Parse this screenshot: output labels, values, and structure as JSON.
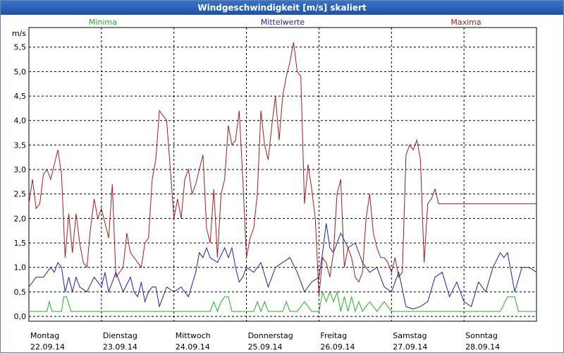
{
  "window": {
    "title": "Windgeschwindigkeit [m/s] skaliert"
  },
  "colors": {
    "min": "#22b222",
    "mean": "#1f1fb0",
    "max": "#a31d1d",
    "grid": "#000000",
    "title_bar": "#2a62b8"
  },
  "chart_data": {
    "type": "line",
    "title": "Windgeschwindigkeit [m/s] skaliert",
    "ylabel": "m/s",
    "ylim": [
      -0.1,
      5.9
    ],
    "yticks": [
      "0,0",
      "0,5",
      "1,0",
      "1,5",
      "2,0",
      "2,5",
      "3,0",
      "3,5",
      "4,0",
      "4,5",
      "5,0",
      "5,5"
    ],
    "yticks_values": [
      0,
      0.5,
      1.0,
      1.5,
      2.0,
      2.5,
      3.0,
      3.5,
      4.0,
      4.5,
      5.0,
      5.5
    ],
    "xlim": [
      0,
      7
    ],
    "days": [
      {
        "name": "Montag",
        "date": "22.09.14"
      },
      {
        "name": "Dienstag",
        "date": "23.09.14"
      },
      {
        "name": "Mittwoch",
        "date": "24.09.14"
      },
      {
        "name": "Donnerstag",
        "date": "25.09.14"
      },
      {
        "name": "Freitag",
        "date": "26.09.14"
      },
      {
        "name": "Samstag",
        "date": "27.09.14"
      },
      {
        "name": "Sonntag",
        "date": "28.09.14"
      }
    ],
    "legend": [
      "Minima",
      "Mittelwerte",
      "Maxima"
    ],
    "grid": true,
    "series": [
      {
        "name": "Minima",
        "x": [
          0,
          0.25,
          0.28,
          0.32,
          0.45,
          0.48,
          0.52,
          0.58,
          0.62,
          1.0,
          1.5,
          1.7,
          1.75,
          2.0,
          2.5,
          2.55,
          2.6,
          2.65,
          2.7,
          2.75,
          2.8,
          2.9,
          3.0,
          3.1,
          3.15,
          3.2,
          3.25,
          3.3,
          3.35,
          3.5,
          3.55,
          3.6,
          3.7,
          3.8,
          3.9,
          3.95,
          4.0,
          4.05,
          4.1,
          4.15,
          4.2,
          4.25,
          4.3,
          4.35,
          4.4,
          4.45,
          4.5,
          4.55,
          4.6,
          4.7,
          4.8,
          4.9,
          5.0,
          5.5,
          6.0,
          6.5,
          6.6,
          6.7,
          6.75,
          6.8,
          6.85,
          6.9,
          7.0
        ],
        "values": [
          0.1,
          0.1,
          0.3,
          0.1,
          0.1,
          0.4,
          0.4,
          0.1,
          0.1,
          0.1,
          0.1,
          0.1,
          0.1,
          0.1,
          0.1,
          0.3,
          0.1,
          0.3,
          0.4,
          0.4,
          0.1,
          0.1,
          0.1,
          0.1,
          0.3,
          0.1,
          0.3,
          0.1,
          0.1,
          0.1,
          0.3,
          0.1,
          0.1,
          0.3,
          0.1,
          0.1,
          0.1,
          0.5,
          0.3,
          0.5,
          0.3,
          0.5,
          0.1,
          0.4,
          0.1,
          0.4,
          0.1,
          0.3,
          0.1,
          0.3,
          0.1,
          0.3,
          0.1,
          0.1,
          0.1,
          0.1,
          0.4,
          0.4,
          0.1,
          0.1,
          0.1,
          0.1,
          0.1
        ]
      },
      {
        "name": "Mittelwerte",
        "x": [
          0,
          0.1,
          0.2,
          0.3,
          0.35,
          0.4,
          0.45,
          0.5,
          0.55,
          0.6,
          0.65,
          0.7,
          0.8,
          0.9,
          1.0,
          1.05,
          1.1,
          1.2,
          1.3,
          1.4,
          1.45,
          1.5,
          1.55,
          1.6,
          1.65,
          1.7,
          1.75,
          1.8,
          1.9,
          2.0,
          2.1,
          2.2,
          2.3,
          2.35,
          2.4,
          2.45,
          2.5,
          2.6,
          2.7,
          2.75,
          2.8,
          2.85,
          2.9,
          2.95,
          3.0,
          3.1,
          3.2,
          3.3,
          3.4,
          3.5,
          3.6,
          3.7,
          3.8,
          3.9,
          4.0,
          4.05,
          4.1,
          4.15,
          4.2,
          4.3,
          4.4,
          4.5,
          4.6,
          4.7,
          4.8,
          4.9,
          5.0,
          5.1,
          5.2,
          5.3,
          5.4,
          5.5,
          5.6,
          5.7,
          5.8,
          5.9,
          6.0,
          6.1,
          6.2,
          6.3,
          6.4,
          6.5,
          6.55,
          6.6,
          6.7,
          6.8,
          6.9,
          7.0
        ],
        "values": [
          0.6,
          0.8,
          0.8,
          1.0,
          0.9,
          1.1,
          1.0,
          0.5,
          0.8,
          0.5,
          0.8,
          0.6,
          0.5,
          0.8,
          0.6,
          0.9,
          0.5,
          0.9,
          0.5,
          0.8,
          0.5,
          0.4,
          0.7,
          0.3,
          0.5,
          0.6,
          0.6,
          0.2,
          0.6,
          0.5,
          0.6,
          0.4,
          0.9,
          1.3,
          1.2,
          1.4,
          1.2,
          1.1,
          1.4,
          1.2,
          1.4,
          1.0,
          0.7,
          0.8,
          1.0,
          0.9,
          1.1,
          0.6,
          1.0,
          1.1,
          1.2,
          0.9,
          0.5,
          0.7,
          0.8,
          1.3,
          1.9,
          1.4,
          1.3,
          1.7,
          1.4,
          1.5,
          1.1,
          0.9,
          1.0,
          0.6,
          0.5,
          0.9,
          0.2,
          0.15,
          0.2,
          0.3,
          0.8,
          0.9,
          0.4,
          0.7,
          0.3,
          0.2,
          0.7,
          0.5,
          1.0,
          1.3,
          1.2,
          1.3,
          0.5,
          1.0,
          1.0,
          0.9
        ]
      },
      {
        "name": "Maxima",
        "x": [
          0,
          0.05,
          0.1,
          0.15,
          0.2,
          0.25,
          0.3,
          0.35,
          0.4,
          0.45,
          0.5,
          0.55,
          0.6,
          0.65,
          0.7,
          0.75,
          0.8,
          0.85,
          0.9,
          0.95,
          1.0,
          1.05,
          1.1,
          1.15,
          1.2,
          1.25,
          1.3,
          1.35,
          1.4,
          1.45,
          1.5,
          1.55,
          1.6,
          1.65,
          1.7,
          1.75,
          1.8,
          1.85,
          1.9,
          1.95,
          2.0,
          2.05,
          2.1,
          2.15,
          2.2,
          2.25,
          2.3,
          2.35,
          2.4,
          2.45,
          2.5,
          2.55,
          2.6,
          2.65,
          2.7,
          2.75,
          2.8,
          2.85,
          2.9,
          2.95,
          3.0,
          3.05,
          3.1,
          3.15,
          3.2,
          3.25,
          3.3,
          3.35,
          3.4,
          3.45,
          3.5,
          3.55,
          3.6,
          3.65,
          3.7,
          3.75,
          3.8,
          3.85,
          3.9,
          3.95,
          4.0,
          4.05,
          4.1,
          4.15,
          4.2,
          4.25,
          4.3,
          4.35,
          4.4,
          4.45,
          4.5,
          4.55,
          4.6,
          4.65,
          4.7,
          4.75,
          4.8,
          4.85,
          4.9,
          4.95,
          5.0,
          5.05,
          5.1,
          5.15,
          5.2,
          5.25,
          5.3,
          5.35,
          5.4,
          5.45,
          5.5,
          5.55,
          5.6,
          5.65,
          5.7,
          5.75,
          5.8,
          5.85,
          5.9,
          5.95,
          6.0,
          6.05,
          6.1,
          6.15,
          6.2,
          6.25,
          6.3,
          6.35,
          6.4,
          6.45,
          6.5,
          6.55,
          6.6,
          6.65,
          6.7,
          6.75,
          6.8,
          6.85,
          6.9,
          6.95,
          7.0
        ],
        "values": [
          2.3,
          2.8,
          2.2,
          2.3,
          2.9,
          3.0,
          2.8,
          3.1,
          3.4,
          2.9,
          1.2,
          2.1,
          1.3,
          2.1,
          1.5,
          1.1,
          1.0,
          1.8,
          2.4,
          2.0,
          2.2,
          1.9,
          1.6,
          2.7,
          0.8,
          0.9,
          1.0,
          1.7,
          1.3,
          1.2,
          1.1,
          1.0,
          1.5,
          1.6,
          2.8,
          3.2,
          4.2,
          4.1,
          4.0,
          3.0,
          2.0,
          2.4,
          2.0,
          2.8,
          3.0,
          2.5,
          2.7,
          3.0,
          3.3,
          1.8,
          1.5,
          2.6,
          1.2,
          2.5,
          2.8,
          3.9,
          3.5,
          3.6,
          4.2,
          2.8,
          1.2,
          1.6,
          1.8,
          2.5,
          4.2,
          3.5,
          3.2,
          3.9,
          4.5,
          3.6,
          4.5,
          4.9,
          5.2,
          5.6,
          5.0,
          4.9,
          2.3,
          3.1,
          2.6,
          2.0,
          0.4,
          1.2,
          1.1,
          0.8,
          1.3,
          2.5,
          2.8,
          1.0,
          1.4,
          1.2,
          0.8,
          0.7,
          0.9,
          2.0,
          2.5,
          1.7,
          1.4,
          1.2,
          1.2,
          1.1,
          0.9,
          1.2,
          0.8,
          0.9,
          3.3,
          3.5,
          3.4,
          3.6,
          3.2,
          1.1,
          2.3,
          2.4,
          2.6,
          2.3,
          2.3,
          2.3,
          2.3,
          2.3,
          2.3,
          2.3,
          2.3,
          2.3,
          2.3,
          2.3,
          2.3,
          2.3,
          2.3,
          2.3,
          2.3,
          2.3,
          2.3,
          2.3,
          2.3,
          2.3,
          2.3,
          2.3,
          2.3,
          2.3,
          2.3,
          2.3,
          2.3
        ]
      }
    ]
  }
}
